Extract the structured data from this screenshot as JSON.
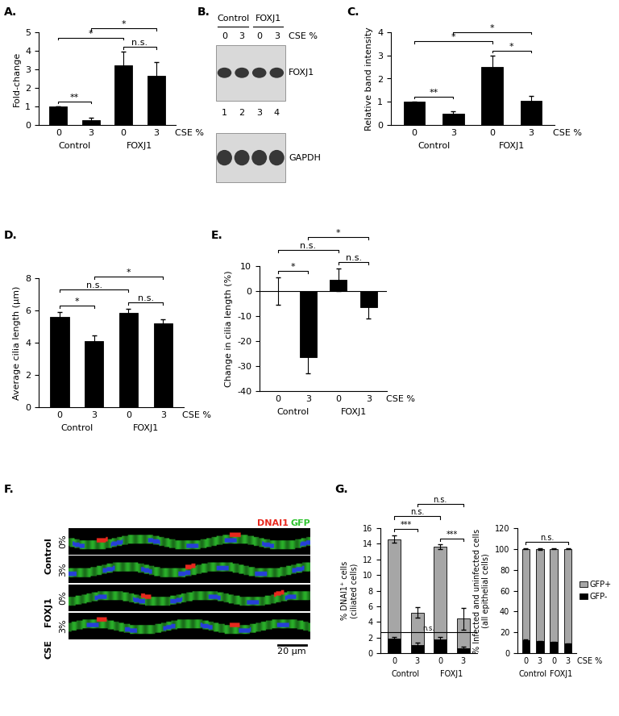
{
  "chart_data": [
    {
      "panel_label": "A.",
      "type": "bar",
      "y_label": "Fold-change",
      "categories": [
        "0",
        "3",
        "0",
        "3"
      ],
      "groups": [
        {
          "name": "Control",
          "members": [
            0,
            1
          ]
        },
        {
          "name": "FOXJ1",
          "members": [
            2,
            3
          ]
        }
      ],
      "x_label": "CSE %",
      "values": [
        1.0,
        0.25,
        3.2,
        2.65
      ],
      "errors": [
        0.02,
        0.15,
        0.75,
        0.75
      ],
      "color": "#000000",
      "ylim": [
        0,
        5
      ],
      "yticks": [
        0,
        1,
        2,
        3,
        4,
        5
      ],
      "significance": [
        {
          "between": [
            0,
            1
          ],
          "label": "**"
        },
        {
          "between": [
            2,
            3
          ],
          "label": "n.s."
        },
        {
          "between": [
            0,
            2
          ],
          "label": "*"
        },
        {
          "between": [
            1,
            3
          ],
          "label": "*"
        }
      ]
    },
    {
      "panel_label": "C.",
      "type": "bar",
      "y_label": "Relative band intensity",
      "categories": [
        "0",
        "3",
        "0",
        "3"
      ],
      "groups": [
        {
          "name": "Control",
          "members": [
            0,
            1
          ]
        },
        {
          "name": "FOXJ1",
          "members": [
            2,
            3
          ]
        }
      ],
      "x_label": "CSE %",
      "values": [
        1.0,
        0.5,
        2.5,
        1.05
      ],
      "errors": [
        0.02,
        0.1,
        0.5,
        0.2
      ],
      "color": "#000000",
      "ylim": [
        0,
        4
      ],
      "yticks": [
        0,
        1,
        2,
        3,
        4
      ],
      "significance": [
        {
          "between": [
            0,
            1
          ],
          "label": "**"
        },
        {
          "between": [
            2,
            3
          ],
          "label": "*"
        },
        {
          "between": [
            0,
            2
          ],
          "label": "*"
        },
        {
          "between": [
            1,
            3
          ],
          "label": "*"
        }
      ]
    },
    {
      "panel_label": "D.",
      "type": "bar",
      "y_label": "Average cilia length (µm)",
      "categories": [
        "0",
        "3",
        "0",
        "3"
      ],
      "groups": [
        {
          "name": "Control",
          "members": [
            0,
            1
          ]
        },
        {
          "name": "FOXJ1",
          "members": [
            2,
            3
          ]
        }
      ],
      "x_label": "CSE %",
      "values": [
        5.6,
        4.1,
        5.85,
        5.2
      ],
      "errors": [
        0.3,
        0.35,
        0.25,
        0.25
      ],
      "color": "#000000",
      "ylim": [
        0,
        8
      ],
      "yticks": [
        0,
        2,
        4,
        6,
        8
      ],
      "significance": [
        {
          "between": [
            0,
            1
          ],
          "label": "*"
        },
        {
          "between": [
            2,
            3
          ],
          "label": "n.s."
        },
        {
          "between": [
            0,
            2
          ],
          "label": "n.s."
        },
        {
          "between": [
            1,
            3
          ],
          "label": "*"
        }
      ]
    },
    {
      "panel_label": "E.",
      "type": "bar",
      "y_label": "Change in cilia length (%)",
      "categories": [
        "0",
        "3",
        "0",
        "3"
      ],
      "groups": [
        {
          "name": "Control",
          "members": [
            0,
            1
          ]
        },
        {
          "name": "FOXJ1",
          "members": [
            2,
            3
          ]
        }
      ],
      "x_label": "CSE %",
      "values": [
        0,
        -26.5,
        4.5,
        -6.5
      ],
      "errors": [
        5.5,
        6.5,
        4.5,
        4.5
      ],
      "color": "#000000",
      "ylim": [
        -40,
        10
      ],
      "yticks": [
        -40,
        -30,
        -20,
        -10,
        0,
        10
      ],
      "significance": [
        {
          "between": [
            0,
            1
          ],
          "label": "*"
        },
        {
          "between": [
            2,
            3
          ],
          "label": "n.s."
        },
        {
          "between": [
            0,
            2
          ],
          "label": "n.s."
        },
        {
          "between": [
            1,
            3
          ],
          "label": "*"
        }
      ]
    },
    {
      "panel_label": "G.",
      "type": "bar",
      "stacked": true,
      "y_label": "% DNAI1⁺ cells\n(ciliated cells)",
      "categories": [
        "0",
        "3",
        "0",
        "3"
      ],
      "groups": [
        {
          "name": "Control",
          "members": [
            0,
            1
          ]
        },
        {
          "name": "FOXJ1",
          "members": [
            2,
            3
          ]
        }
      ],
      "series": [
        {
          "color": "#000000",
          "values": [
            1.9,
            1.0,
            1.8,
            0.6
          ],
          "errors": [
            0.2,
            0.3,
            0.3,
            0.2
          ]
        },
        {
          "color": "#a6a6a6",
          "values": [
            12.7,
            4.2,
            11.8,
            3.8
          ],
          "errors": [
            0.5,
            0.7,
            0.3,
            1.4
          ]
        }
      ],
      "reference_line": {
        "value": 2.7,
        "label": "n.s."
      },
      "ylim": [
        0,
        16
      ],
      "yticks": [
        0,
        2,
        4,
        6,
        8,
        10,
        12,
        14,
        16
      ],
      "significance": [
        {
          "between": [
            0,
            1
          ],
          "label": "***"
        },
        {
          "between": [
            2,
            3
          ],
          "label": "***"
        },
        {
          "between": [
            0,
            2
          ],
          "label": "n.s."
        },
        {
          "between": [
            1,
            3
          ],
          "label": "n.s."
        }
      ]
    },
    {
      "type": "bar",
      "stacked": true,
      "y_label": "% Infected and uninfected cells\n(all epithelial cells)",
      "categories": [
        "0",
        "3",
        "0",
        "3"
      ],
      "groups": [
        {
          "name": "Control",
          "members": [
            0,
            1
          ]
        },
        {
          "name": "FOXJ1",
          "members": [
            2,
            3
          ]
        }
      ],
      "x_label": "CSE %",
      "series": [
        {
          "name": "GFP-",
          "color": "#000000",
          "values": [
            12.5,
            11.5,
            10.5,
            9.0
          ],
          "errors": [
            0.5,
            0.5,
            0.4,
            0.4
          ]
        },
        {
          "name": "GFP+",
          "color": "#a6a6a6",
          "values": [
            87.5,
            88.5,
            89.5,
            91.0
          ],
          "errors": [
            0.5,
            0.6,
            0.4,
            0.4
          ]
        }
      ],
      "legend": "right",
      "ylim": [
        0,
        120
      ],
      "yticks": [
        0,
        20,
        40,
        60,
        80,
        100,
        120
      ],
      "significance": [
        {
          "between": [
            0,
            3
          ],
          "label": "n.s."
        }
      ]
    }
  ],
  "blot": {
    "panel_label": "B.",
    "groups": [
      "Control",
      "FOXJ1"
    ],
    "condition_label": "CSE %",
    "conditions": [
      "0",
      "3",
      "0",
      "3"
    ],
    "bands": [
      "FOXJ1",
      "GAPDH"
    ],
    "lanes": [
      "1",
      "2",
      "3",
      "4"
    ]
  },
  "micrograph": {
    "panel_label": "F.",
    "channels": [
      {
        "name": "DNAI1",
        "color": "#e8281e"
      },
      {
        "name": "GFP",
        "color": "#2fc42f"
      }
    ],
    "groups": [
      {
        "name": "Control",
        "rows": [
          "0%",
          "3%"
        ]
      },
      {
        "name": "FOXJ1",
        "rows": [
          "0%",
          "3%"
        ]
      }
    ],
    "side_label": "CSE",
    "scale_bar": "20 µm"
  }
}
